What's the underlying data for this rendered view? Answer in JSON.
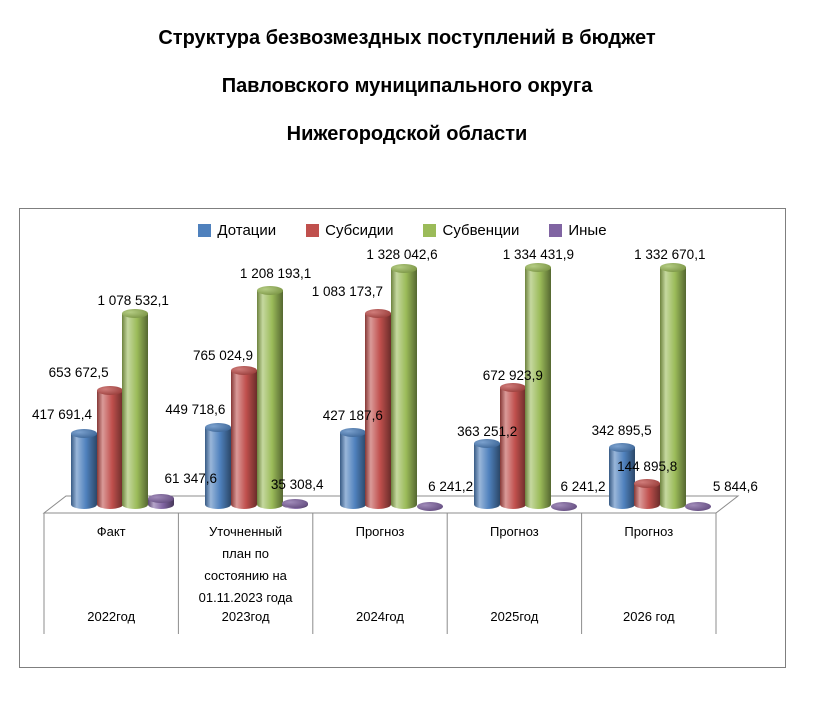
{
  "title": {
    "lines": [
      "Структура безвозмездных поступлений в бюджет",
      "Павловского муниципального округа",
      "Нижегородской области"
    ]
  },
  "chart_data": {
    "type": "bar",
    "style": "3d-cylinder-clustered",
    "title": "Структура безвозмездных поступлений в бюджет Павловского муниципального округа Нижегородской области",
    "legend_position": "top",
    "value_axis_visible": false,
    "data_labels_visible": true,
    "categories": [
      {
        "label_lines": [
          "Факт"
        ],
        "year": "2022год"
      },
      {
        "label_lines": [
          "Уточненный",
          "план по",
          "состоянию на",
          "01.11.2023 года"
        ],
        "year": "2023год"
      },
      {
        "label_lines": [
          "Прогноз"
        ],
        "year": "2024год"
      },
      {
        "label_lines": [
          "Прогноз"
        ],
        "year": "2025год"
      },
      {
        "label_lines": [
          "Прогноз"
        ],
        "year": "2026 год"
      }
    ],
    "series": [
      {
        "name": "Дотации",
        "color": "#4F81BD",
        "values": [
          417691.4,
          449718.6,
          427187.6,
          363251.2,
          342895.5
        ]
      },
      {
        "name": "Субсидии",
        "color": "#C0504D",
        "values": [
          653672.5,
          765024.9,
          1083173.7,
          672923.9,
          144895.8
        ]
      },
      {
        "name": "Субвенции",
        "color": "#9BBB59",
        "values": [
          1078532.1,
          1208193.1,
          1328042.6,
          1334431.9,
          1332670.1
        ]
      },
      {
        "name": "Иные",
        "color": "#8064A2",
        "values": [
          61347.6,
          35308.4,
          6241.2,
          6241.2,
          5844.6
        ]
      }
    ]
  }
}
